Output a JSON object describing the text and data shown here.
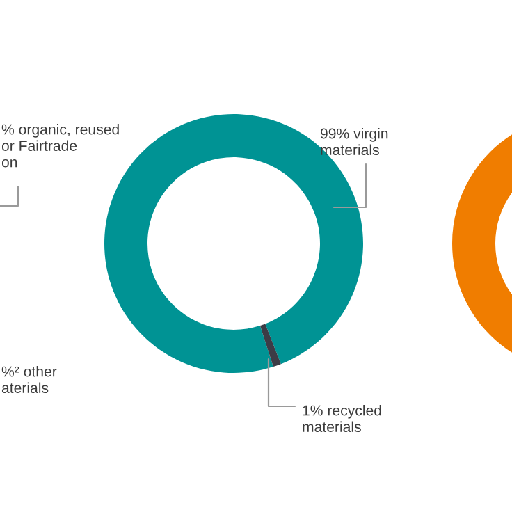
{
  "chart_data": {
    "type": "donut",
    "categories": [
      "99% virgin materials",
      "1% recycled materials"
    ],
    "values": [
      99,
      1
    ],
    "colors": [
      "#009394",
      "#3c3c46"
    ],
    "annotations": [
      "% organic, reused\nor Fairtrade\non",
      "%² other\naterials"
    ]
  }
}
